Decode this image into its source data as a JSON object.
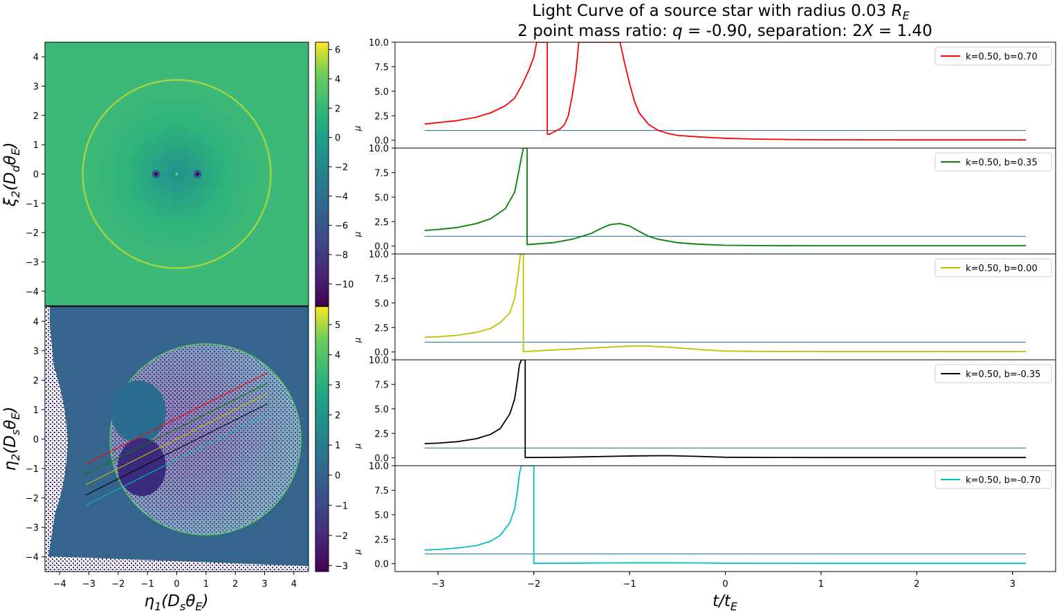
{
  "figure": {
    "title_line1": "Light Curve of a source star with radius 0.03 R",
    "title_line1_sub": "E",
    "title_line2": "2 point mass ratio: q =  -0.90, separation: 2X =  1.40"
  },
  "colors": {
    "curve_ref": "#1f77b4",
    "viridis_dark": "#440154",
    "viridis_mid": "#21918c",
    "viridis_green": "#35b779",
    "viridis_yellow": "#fde725"
  },
  "chart_data": [
    {
      "id": "lens_plane",
      "type": "heatmap",
      "title": "",
      "xlabel": "",
      "ylabel": "ξ2(DdθE)",
      "xlim": [
        -4.5,
        4.5
      ],
      "ylim": [
        -4.5,
        4.5
      ],
      "yticks": [
        -4,
        -3,
        -2,
        -1,
        0,
        1,
        2,
        3,
        4
      ],
      "ytick_labels": [
        "−4",
        "−3",
        "−2",
        "−1",
        "0",
        "1",
        "2",
        "3",
        "4"
      ],
      "features": {
        "ring_radius": 2.88,
        "point_masses_x": [
          -0.7,
          0.7
        ]
      },
      "colorbar": {
        "range": [
          -11.5,
          6.5
        ],
        "ticks": [
          -10,
          -8,
          -6,
          -4,
          -2,
          0,
          2,
          4,
          6
        ],
        "tick_labels": [
          "−10",
          "−8",
          "−6",
          "−4",
          "−2",
          "0",
          "2",
          "4",
          "6"
        ]
      }
    },
    {
      "id": "source_plane",
      "type": "heatmap",
      "title": "",
      "xlabel": "η1(DsθE)",
      "ylabel": "η2(DsθE)",
      "xlim": [
        -4.5,
        4.5
      ],
      "ylim": [
        -4.5,
        4.5
      ],
      "xticks": [
        -4,
        -3,
        -2,
        -1,
        0,
        1,
        2,
        3,
        4
      ],
      "xtick_labels": [
        "−4",
        "−3",
        "−2",
        "−1",
        "0",
        "1",
        "2",
        "3",
        "4"
      ],
      "yticks": [
        -4,
        -3,
        -2,
        -1,
        0,
        1,
        2,
        3,
        4
      ],
      "ytick_labels": [
        "−4",
        "−3",
        "−2",
        "−1",
        "0",
        "1",
        "2",
        "3",
        "4"
      ],
      "features": {
        "disk_radius": 3.5
      },
      "tracks": [
        {
          "color": "#ff0000",
          "x": [
            -3.1,
            3.1
          ],
          "y": [
            -0.85,
            2.25
          ]
        },
        {
          "color": "#008000",
          "x": [
            -3.1,
            3.1
          ],
          "y": [
            -1.2,
            1.9
          ]
        },
        {
          "color": "#bfbf00",
          "x": [
            -3.1,
            3.1
          ],
          "y": [
            -1.55,
            1.55
          ]
        },
        {
          "color": "#000000",
          "x": [
            -3.1,
            3.1
          ],
          "y": [
            -1.9,
            1.2
          ]
        },
        {
          "color": "#00bfbf",
          "x": [
            -3.1,
            3.1
          ],
          "y": [
            -2.25,
            0.85
          ]
        }
      ],
      "colorbar": {
        "range": [
          -3.2,
          5.6
        ],
        "ticks": [
          -3,
          -2,
          -1,
          0,
          1,
          2,
          3,
          4,
          5
        ],
        "tick_labels": [
          "−3",
          "−2",
          "−1",
          "0",
          "1",
          "2",
          "3",
          "4",
          "5"
        ]
      }
    },
    {
      "id": "light_curves",
      "type": "line",
      "title": "",
      "xlabel": "t/tE",
      "ylabel": "μ",
      "xlim": [
        -3.45,
        3.45
      ],
      "ylim": [
        -0.8,
        10
      ],
      "xticks": [
        -3,
        -2,
        -1,
        0,
        1,
        2,
        3
      ],
      "xtick_labels": [
        "−3",
        "−2",
        "−1",
        "0",
        "1",
        "2",
        "3"
      ],
      "yticks": [
        0,
        2.5,
        5,
        7.5,
        10
      ],
      "ytick_labels": [
        "0.0",
        "2.5",
        "5.0",
        "7.5",
        "10.0"
      ],
      "legend_position": "top-right",
      "reference_level": 1.0,
      "panels": [
        {
          "label": "k=0.50, b=0.70",
          "color": "#ff0000",
          "x": [
            -3.14,
            -3.0,
            -2.8,
            -2.6,
            -2.45,
            -2.3,
            -2.2,
            -2.12,
            -2.05,
            -2.0,
            -1.97,
            -1.94,
            -1.88,
            -1.86,
            -1.86,
            -1.84,
            -1.8,
            -1.76,
            -1.72,
            -1.68,
            -1.64,
            -1.6,
            -1.56,
            -1.53,
            -1.5,
            -1.45,
            -1.4,
            -1.35,
            -1.3,
            -1.25,
            -1.2,
            -1.15,
            -1.1,
            -1.05,
            -1.0,
            -0.95,
            -0.9,
            -0.8,
            -0.7,
            -0.6,
            -0.5,
            -0.3,
            -0.1,
            0.0,
            0.3,
            0.6,
            1.0,
            1.5,
            2.0,
            2.5,
            3.14
          ],
          "y": [
            1.65,
            1.8,
            2.0,
            2.35,
            2.8,
            3.5,
            4.3,
            5.7,
            7.2,
            8.5,
            10,
            10,
            10,
            10,
            0.65,
            0.6,
            0.8,
            1.0,
            1.2,
            1.6,
            2.5,
            4.5,
            7.0,
            10,
            10,
            10,
            10,
            10,
            10,
            10,
            10,
            10,
            10,
            7.8,
            5.8,
            4.0,
            2.8,
            1.6,
            1.0,
            0.7,
            0.5,
            0.35,
            0.25,
            0.2,
            0.12,
            0.08,
            0.05,
            0.04,
            0.03,
            0.03,
            0.03
          ]
        },
        {
          "label": "k=0.50, b=0.35",
          "color": "#008000",
          "x": [
            -3.14,
            -3.0,
            -2.8,
            -2.6,
            -2.45,
            -2.3,
            -2.2,
            -2.17,
            -2.13,
            -2.11,
            -2.07,
            -2.07,
            -2.0,
            -1.8,
            -1.6,
            -1.4,
            -1.3,
            -1.2,
            -1.1,
            -1.0,
            -0.9,
            -0.8,
            -0.7,
            -0.5,
            -0.3,
            0.0,
            0.5,
            1.0,
            2.0,
            3.14
          ],
          "y": [
            1.6,
            1.7,
            1.9,
            2.3,
            2.8,
            3.8,
            5.5,
            7.0,
            9.0,
            10,
            10,
            0.15,
            0.2,
            0.35,
            0.7,
            1.3,
            1.8,
            2.2,
            2.3,
            2.05,
            1.5,
            1.0,
            0.7,
            0.35,
            0.2,
            0.08,
            0.05,
            0.04,
            0.04,
            0.04
          ]
        },
        {
          "label": "k=0.50, b=0.00",
          "color": "#bfbf00",
          "x": [
            -3.14,
            -3.0,
            -2.8,
            -2.6,
            -2.45,
            -2.35,
            -2.25,
            -2.2,
            -2.17,
            -2.15,
            -2.14,
            -2.11,
            -2.11,
            -2.0,
            -1.8,
            -1.5,
            -1.2,
            -1.0,
            -0.8,
            -0.6,
            -0.4,
            -0.2,
            0.0,
            0.5,
            1.0,
            2.0,
            3.14
          ],
          "y": [
            1.5,
            1.55,
            1.7,
            2.0,
            2.4,
            3.0,
            4.0,
            5.5,
            7.5,
            9.0,
            10,
            10,
            0.05,
            0.1,
            0.2,
            0.35,
            0.5,
            0.6,
            0.6,
            0.5,
            0.35,
            0.2,
            0.1,
            0.05,
            0.04,
            0.04,
            0.04
          ]
        },
        {
          "label": "k=0.50, b=-0.35",
          "color": "#000000",
          "x": [
            -3.14,
            -3.0,
            -2.8,
            -2.6,
            -2.45,
            -2.35,
            -2.25,
            -2.2,
            -2.17,
            -2.15,
            -2.13,
            -2.09,
            -2.09,
            -1.8,
            -1.5,
            -1.2,
            -0.9,
            -0.6,
            -0.3,
            0.0,
            0.5,
            1.0,
            2.0,
            3.14
          ],
          "y": [
            1.45,
            1.5,
            1.65,
            1.95,
            2.4,
            3.0,
            4.5,
            6.0,
            8.0,
            9.5,
            10,
            10,
            0.03,
            0.05,
            0.1,
            0.15,
            0.2,
            0.22,
            0.15,
            0.06,
            0.04,
            0.03,
            0.03,
            0.03
          ]
        },
        {
          "label": "k=0.50, b=-0.70",
          "color": "#00bfbf",
          "x": [
            -3.14,
            -3.0,
            -2.8,
            -2.6,
            -2.45,
            -2.35,
            -2.25,
            -2.2,
            -2.17,
            -2.15,
            -2.13,
            -2.0,
            -2.0,
            -1.8,
            -1.5,
            -1.2,
            -0.9,
            -0.6,
            -0.3,
            0.0,
            0.5,
            1.0,
            2.0,
            3.14
          ],
          "y": [
            1.4,
            1.45,
            1.6,
            1.85,
            2.3,
            2.9,
            4.2,
            5.6,
            7.5,
            9.2,
            10,
            10,
            0.03,
            0.05,
            0.06,
            0.08,
            0.1,
            0.1,
            0.08,
            0.05,
            0.04,
            0.03,
            0.03,
            0.03
          ]
        }
      ]
    }
  ]
}
